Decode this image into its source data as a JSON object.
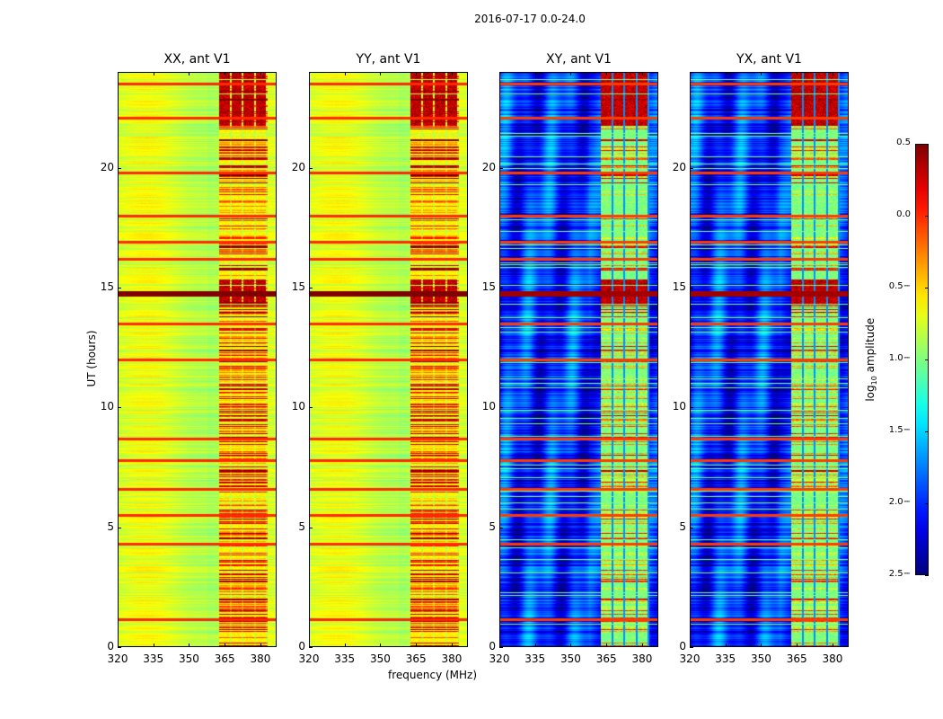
{
  "chart_data": {
    "type": "heatmap",
    "title": "2016-07-17 0.0-24.0",
    "xlabel": "frequency (MHz)",
    "ylabel": "UT (hours)",
    "xlim": [
      320,
      386.8
    ],
    "ylim": [
      0,
      24
    ],
    "xticks": [
      "320",
      "335",
      "350",
      "365",
      "380"
    ],
    "xtick_values": [
      320,
      335,
      350,
      365,
      380
    ],
    "yticks": [
      "0",
      "5",
      "10",
      "15",
      "20"
    ],
    "ytick_values": [
      0,
      5,
      10,
      15,
      20
    ],
    "rfi_band_mhz": [
      362.5,
      383
    ],
    "strong_rfi_hours": [
      1.15,
      4.3,
      5.5,
      6.6,
      7.8,
      8.7,
      12.0,
      13.5,
      14.75,
      16.2,
      16.9,
      18.0,
      19.8,
      22.1,
      23.5
    ],
    "panels": [
      {
        "title": "XX, ant V1",
        "pol": "auto",
        "base_level": -0.8
      },
      {
        "title": "YY, ant V1",
        "pol": "auto",
        "base_level": -0.8
      },
      {
        "title": "XY, ant V1",
        "pol": "cross",
        "base_level": -2.0
      },
      {
        "title": "YX, ant V1",
        "pol": "cross",
        "base_level": -2.0
      }
    ],
    "colorbar": {
      "label_main": "log",
      "label_sub": "10",
      "label_rest": " amplitude",
      "colormap": "jet",
      "clim": [
        -2.5,
        0.5
      ],
      "ticks": [
        "0.5",
        "0.0",
        "−0.5",
        "−1.0",
        "−1.5",
        "−2.0",
        "−2.5"
      ],
      "tick_values": [
        0.5,
        0.0,
        -0.5,
        -1.0,
        -1.5,
        -2.0,
        -2.5
      ]
    }
  }
}
